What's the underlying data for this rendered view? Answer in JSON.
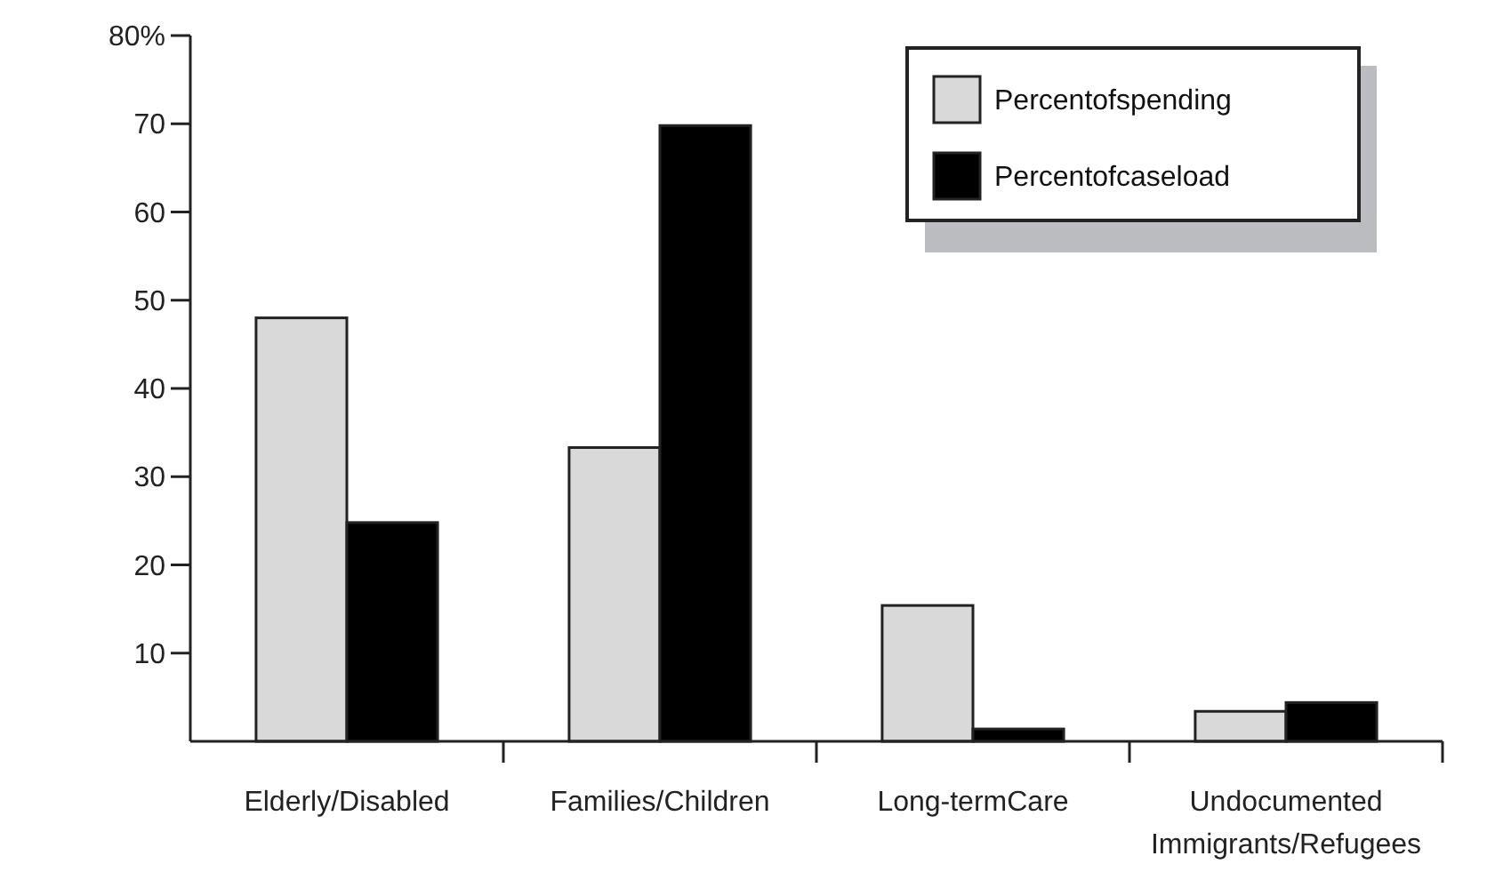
{
  "chart_data": {
    "type": "bar",
    "categories": [
      "Elderly/Disabled",
      "Families/Children",
      "Long-termCare",
      "Undocumented Immigrants/Refugees"
    ],
    "series": [
      {
        "name": "Percentofspending",
        "color": "#d9d9d9",
        "values": [
          48,
          33.3,
          15.4,
          3.4
        ]
      },
      {
        "name": "Percentofcaseload",
        "color": "#000000",
        "values": [
          24.8,
          69.8,
          1.4,
          4.4
        ]
      }
    ],
    "ylim": [
      0,
      80
    ],
    "yticks": [
      10,
      20,
      30,
      40,
      50,
      60,
      70,
      {
        "value": 80,
        "label": "80%"
      }
    ],
    "legend": "top right",
    "grid": false
  }
}
